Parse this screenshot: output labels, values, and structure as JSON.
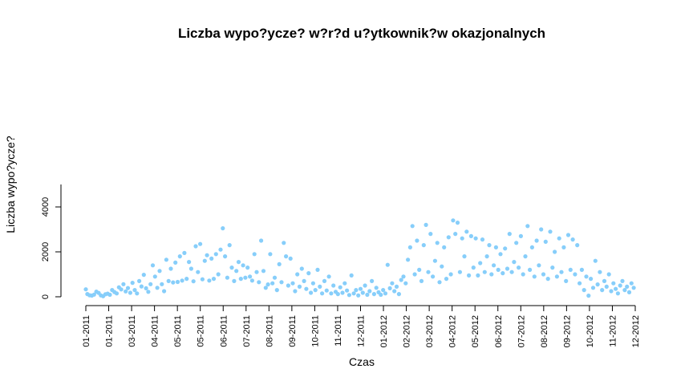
{
  "chart_data": {
    "type": "scatter",
    "title": "Liczba wypo?ycze? w?r?d u?ytkownik?w okazjonalnych",
    "xlabel": "Czas",
    "ylabel": "Liczba wypo?ycze?",
    "x_ticks": [
      "01-2011",
      "01-2011",
      "03-2011",
      "04-2011",
      "05-2011",
      "05-2011",
      "06-2011",
      "07-2011",
      "08-2011",
      "09-2011",
      "10-2011",
      "11-2011",
      "12-2011",
      "01-2012",
      "02-2012",
      "03-2012",
      "04-2012",
      "05-2012",
      "06-2012",
      "07-2012",
      "08-2012",
      "09-2012",
      "10-2012",
      "11-2012",
      "12-2012"
    ],
    "y_ticks": [
      0,
      2000,
      4000
    ],
    "ylim": [
      0,
      5000
    ],
    "xlim": [
      "2011-01-01",
      "2012-12-31"
    ],
    "grid": false,
    "point_color": "#87CEFA",
    "series": [
      {
        "points": [
          [
            "2011-01-01",
            331
          ],
          [
            "2011-01-03",
            120
          ],
          [
            "2011-01-06",
            68
          ],
          [
            "2011-01-09",
            54
          ],
          [
            "2011-01-12",
            95
          ],
          [
            "2011-01-15",
            230
          ],
          [
            "2011-01-18",
            170
          ],
          [
            "2011-01-21",
            60
          ],
          [
            "2011-01-24",
            25
          ],
          [
            "2011-01-27",
            110
          ],
          [
            "2011-01-30",
            140
          ],
          [
            "2011-02-02",
            90
          ],
          [
            "2011-02-05",
            300
          ],
          [
            "2011-02-08",
            210
          ],
          [
            "2011-02-11",
            150
          ],
          [
            "2011-02-14",
            420
          ],
          [
            "2011-02-17",
            330
          ],
          [
            "2011-02-20",
            560
          ],
          [
            "2011-02-23",
            240
          ],
          [
            "2011-02-26",
            390
          ],
          [
            "2011-03-01",
            180
          ],
          [
            "2011-03-04",
            620
          ],
          [
            "2011-03-07",
            300
          ],
          [
            "2011-03-10",
            150
          ],
          [
            "2011-03-13",
            700
          ],
          [
            "2011-03-16",
            460
          ],
          [
            "2011-03-19",
            980
          ],
          [
            "2011-03-22",
            380
          ],
          [
            "2011-03-25",
            220
          ],
          [
            "2011-03-28",
            560
          ],
          [
            "2011-03-31",
            1400
          ],
          [
            "2011-04-03",
            900
          ],
          [
            "2011-04-06",
            400
          ],
          [
            "2011-04-09",
            1150
          ],
          [
            "2011-04-12",
            560
          ],
          [
            "2011-04-15",
            250
          ],
          [
            "2011-04-18",
            1650
          ],
          [
            "2011-04-21",
            700
          ],
          [
            "2011-04-24",
            1250
          ],
          [
            "2011-04-27",
            640
          ],
          [
            "2011-04-30",
            1520
          ],
          [
            "2011-05-03",
            660
          ],
          [
            "2011-05-06",
            1800
          ],
          [
            "2011-05-09",
            720
          ],
          [
            "2011-05-12",
            1950
          ],
          [
            "2011-05-15",
            800
          ],
          [
            "2011-05-18",
            1550
          ],
          [
            "2011-05-21",
            1250
          ],
          [
            "2011-05-24",
            690
          ],
          [
            "2011-05-27",
            2250
          ],
          [
            "2011-05-30",
            1100
          ],
          [
            "2011-06-02",
            2350
          ],
          [
            "2011-06-05",
            780
          ],
          [
            "2011-06-08",
            1600
          ],
          [
            "2011-06-11",
            1850
          ],
          [
            "2011-06-14",
            720
          ],
          [
            "2011-06-17",
            1700
          ],
          [
            "2011-06-20",
            800
          ],
          [
            "2011-06-23",
            1900
          ],
          [
            "2011-06-26",
            1000
          ],
          [
            "2011-06-29",
            2100
          ],
          [
            "2011-07-02",
            3050
          ],
          [
            "2011-07-05",
            1800
          ],
          [
            "2011-07-08",
            850
          ],
          [
            "2011-07-11",
            2300
          ],
          [
            "2011-07-14",
            1300
          ],
          [
            "2011-07-17",
            700
          ],
          [
            "2011-07-20",
            1150
          ],
          [
            "2011-07-23",
            1550
          ],
          [
            "2011-07-26",
            800
          ],
          [
            "2011-07-29",
            1400
          ],
          [
            "2011-08-01",
            850
          ],
          [
            "2011-08-04",
            1300
          ],
          [
            "2011-08-07",
            900
          ],
          [
            "2011-08-10",
            720
          ],
          [
            "2011-08-13",
            1900
          ],
          [
            "2011-08-16",
            1100
          ],
          [
            "2011-08-19",
            650
          ],
          [
            "2011-08-22",
            2500
          ],
          [
            "2011-08-25",
            1150
          ],
          [
            "2011-08-28",
            400
          ],
          [
            "2011-08-31",
            550
          ],
          [
            "2011-09-03",
            1900
          ],
          [
            "2011-09-06",
            600
          ],
          [
            "2011-09-09",
            850
          ],
          [
            "2011-09-12",
            300
          ],
          [
            "2011-09-15",
            1450
          ],
          [
            "2011-09-18",
            650
          ],
          [
            "2011-09-21",
            2400
          ],
          [
            "2011-09-24",
            1800
          ],
          [
            "2011-09-27",
            500
          ],
          [
            "2011-09-30",
            1700
          ],
          [
            "2011-10-03",
            600
          ],
          [
            "2011-10-06",
            250
          ],
          [
            "2011-10-09",
            1000
          ],
          [
            "2011-10-12",
            450
          ],
          [
            "2011-10-15",
            1250
          ],
          [
            "2011-10-18",
            700
          ],
          [
            "2011-10-21",
            350
          ],
          [
            "2011-10-24",
            1050
          ],
          [
            "2011-10-27",
            180
          ],
          [
            "2011-10-30",
            600
          ],
          [
            "2011-11-02",
            300
          ],
          [
            "2011-11-05",
            1200
          ],
          [
            "2011-11-08",
            450
          ],
          [
            "2011-11-11",
            150
          ],
          [
            "2011-11-14",
            700
          ],
          [
            "2011-11-17",
            280
          ],
          [
            "2011-11-20",
            900
          ],
          [
            "2011-11-23",
            150
          ],
          [
            "2011-11-26",
            500
          ],
          [
            "2011-11-29",
            220
          ],
          [
            "2011-12-02",
            120
          ],
          [
            "2011-12-05",
            420
          ],
          [
            "2011-12-08",
            180
          ],
          [
            "2011-12-11",
            600
          ],
          [
            "2011-12-14",
            280
          ],
          [
            "2011-12-17",
            80
          ],
          [
            "2011-12-20",
            950
          ],
          [
            "2011-12-23",
            150
          ],
          [
            "2011-12-26",
            300
          ],
          [
            "2011-12-29",
            60
          ],
          [
            "2012-01-01",
            350
          ],
          [
            "2012-01-04",
            180
          ],
          [
            "2012-01-07",
            500
          ],
          [
            "2012-01-10",
            90
          ],
          [
            "2012-01-13",
            250
          ],
          [
            "2012-01-16",
            700
          ],
          [
            "2012-01-19",
            120
          ],
          [
            "2012-01-22",
            400
          ],
          [
            "2012-01-25",
            200
          ],
          [
            "2012-01-28",
            90
          ],
          [
            "2012-01-31",
            300
          ],
          [
            "2012-02-03",
            150
          ],
          [
            "2012-02-06",
            1420
          ],
          [
            "2012-02-09",
            380
          ],
          [
            "2012-02-12",
            600
          ],
          [
            "2012-02-15",
            250
          ],
          [
            "2012-02-18",
            450
          ],
          [
            "2012-02-21",
            120
          ],
          [
            "2012-02-24",
            750
          ],
          [
            "2012-02-27",
            900
          ],
          [
            "2012-03-01",
            600
          ],
          [
            "2012-03-04",
            1650
          ],
          [
            "2012-03-07",
            2200
          ],
          [
            "2012-03-10",
            3150
          ],
          [
            "2012-03-13",
            1000
          ],
          [
            "2012-03-16",
            2500
          ],
          [
            "2012-03-19",
            1200
          ],
          [
            "2012-03-22",
            700
          ],
          [
            "2012-03-25",
            2300
          ],
          [
            "2012-03-28",
            3200
          ],
          [
            "2012-03-31",
            1100
          ],
          [
            "2012-04-03",
            2800
          ],
          [
            "2012-04-06",
            900
          ],
          [
            "2012-04-09",
            1600
          ],
          [
            "2012-04-12",
            2400
          ],
          [
            "2012-04-15",
            650
          ],
          [
            "2012-04-18",
            1350
          ],
          [
            "2012-04-21",
            2200
          ],
          [
            "2012-04-24",
            800
          ],
          [
            "2012-04-27",
            2650
          ],
          [
            "2012-04-30",
            1000
          ],
          [
            "2012-05-03",
            3400
          ],
          [
            "2012-05-06",
            2800
          ],
          [
            "2012-05-09",
            3300
          ],
          [
            "2012-05-12",
            1100
          ],
          [
            "2012-05-15",
            2600
          ],
          [
            "2012-05-18",
            1800
          ],
          [
            "2012-05-21",
            2900
          ],
          [
            "2012-05-24",
            950
          ],
          [
            "2012-05-27",
            2700
          ],
          [
            "2012-05-30",
            1300
          ],
          [
            "2012-06-02",
            2600
          ],
          [
            "2012-06-05",
            950
          ],
          [
            "2012-06-08",
            1500
          ],
          [
            "2012-06-11",
            2550
          ],
          [
            "2012-06-14",
            1100
          ],
          [
            "2012-06-17",
            1800
          ],
          [
            "2012-06-20",
            2300
          ],
          [
            "2012-06-23",
            1000
          ],
          [
            "2012-06-26",
            1400
          ],
          [
            "2012-06-29",
            2200
          ],
          [
            "2012-07-02",
            1200
          ],
          [
            "2012-07-05",
            1900
          ],
          [
            "2012-07-08",
            1050
          ],
          [
            "2012-07-11",
            2150
          ],
          [
            "2012-07-14",
            1250
          ],
          [
            "2012-07-17",
            2800
          ],
          [
            "2012-07-20",
            1100
          ],
          [
            "2012-07-23",
            1550
          ],
          [
            "2012-07-26",
            2400
          ],
          [
            "2012-07-29",
            1300
          ],
          [
            "2012-08-01",
            2700
          ],
          [
            "2012-08-04",
            1000
          ],
          [
            "2012-08-07",
            1800
          ],
          [
            "2012-08-10",
            3150
          ],
          [
            "2012-08-13",
            1200
          ],
          [
            "2012-08-16",
            2200
          ],
          [
            "2012-08-19",
            900
          ],
          [
            "2012-08-22",
            2500
          ],
          [
            "2012-08-25",
            1400
          ],
          [
            "2012-08-28",
            3000
          ],
          [
            "2012-08-31",
            1000
          ],
          [
            "2012-09-03",
            2450
          ],
          [
            "2012-09-06",
            800
          ],
          [
            "2012-09-09",
            2900
          ],
          [
            "2012-09-12",
            1300
          ],
          [
            "2012-09-15",
            2000
          ],
          [
            "2012-09-18",
            900
          ],
          [
            "2012-09-21",
            2600
          ],
          [
            "2012-09-24",
            1100
          ],
          [
            "2012-09-27",
            2200
          ],
          [
            "2012-09-30",
            700
          ],
          [
            "2012-10-03",
            2750
          ],
          [
            "2012-10-06",
            1200
          ],
          [
            "2012-10-09",
            2550
          ],
          [
            "2012-10-12",
            1000
          ],
          [
            "2012-10-15",
            2300
          ],
          [
            "2012-10-18",
            600
          ],
          [
            "2012-10-21",
            1200
          ],
          [
            "2012-10-24",
            300
          ],
          [
            "2012-10-27",
            900
          ],
          [
            "2012-10-30",
            50
          ],
          [
            "2012-11-02",
            800
          ],
          [
            "2012-11-05",
            400
          ],
          [
            "2012-11-08",
            1600
          ],
          [
            "2012-11-11",
            550
          ],
          [
            "2012-11-14",
            1100
          ],
          [
            "2012-11-17",
            300
          ],
          [
            "2012-11-20",
            700
          ],
          [
            "2012-11-23",
            450
          ],
          [
            "2012-11-26",
            1000
          ],
          [
            "2012-11-29",
            250
          ],
          [
            "2012-12-02",
            600
          ],
          [
            "2012-12-05",
            350
          ],
          [
            "2012-12-08",
            150
          ],
          [
            "2012-12-11",
            500
          ],
          [
            "2012-12-14",
            700
          ],
          [
            "2012-12-17",
            300
          ],
          [
            "2012-12-20",
            450
          ],
          [
            "2012-12-23",
            200
          ],
          [
            "2012-12-26",
            600
          ],
          [
            "2012-12-29",
            400
          ]
        ]
      }
    ]
  }
}
